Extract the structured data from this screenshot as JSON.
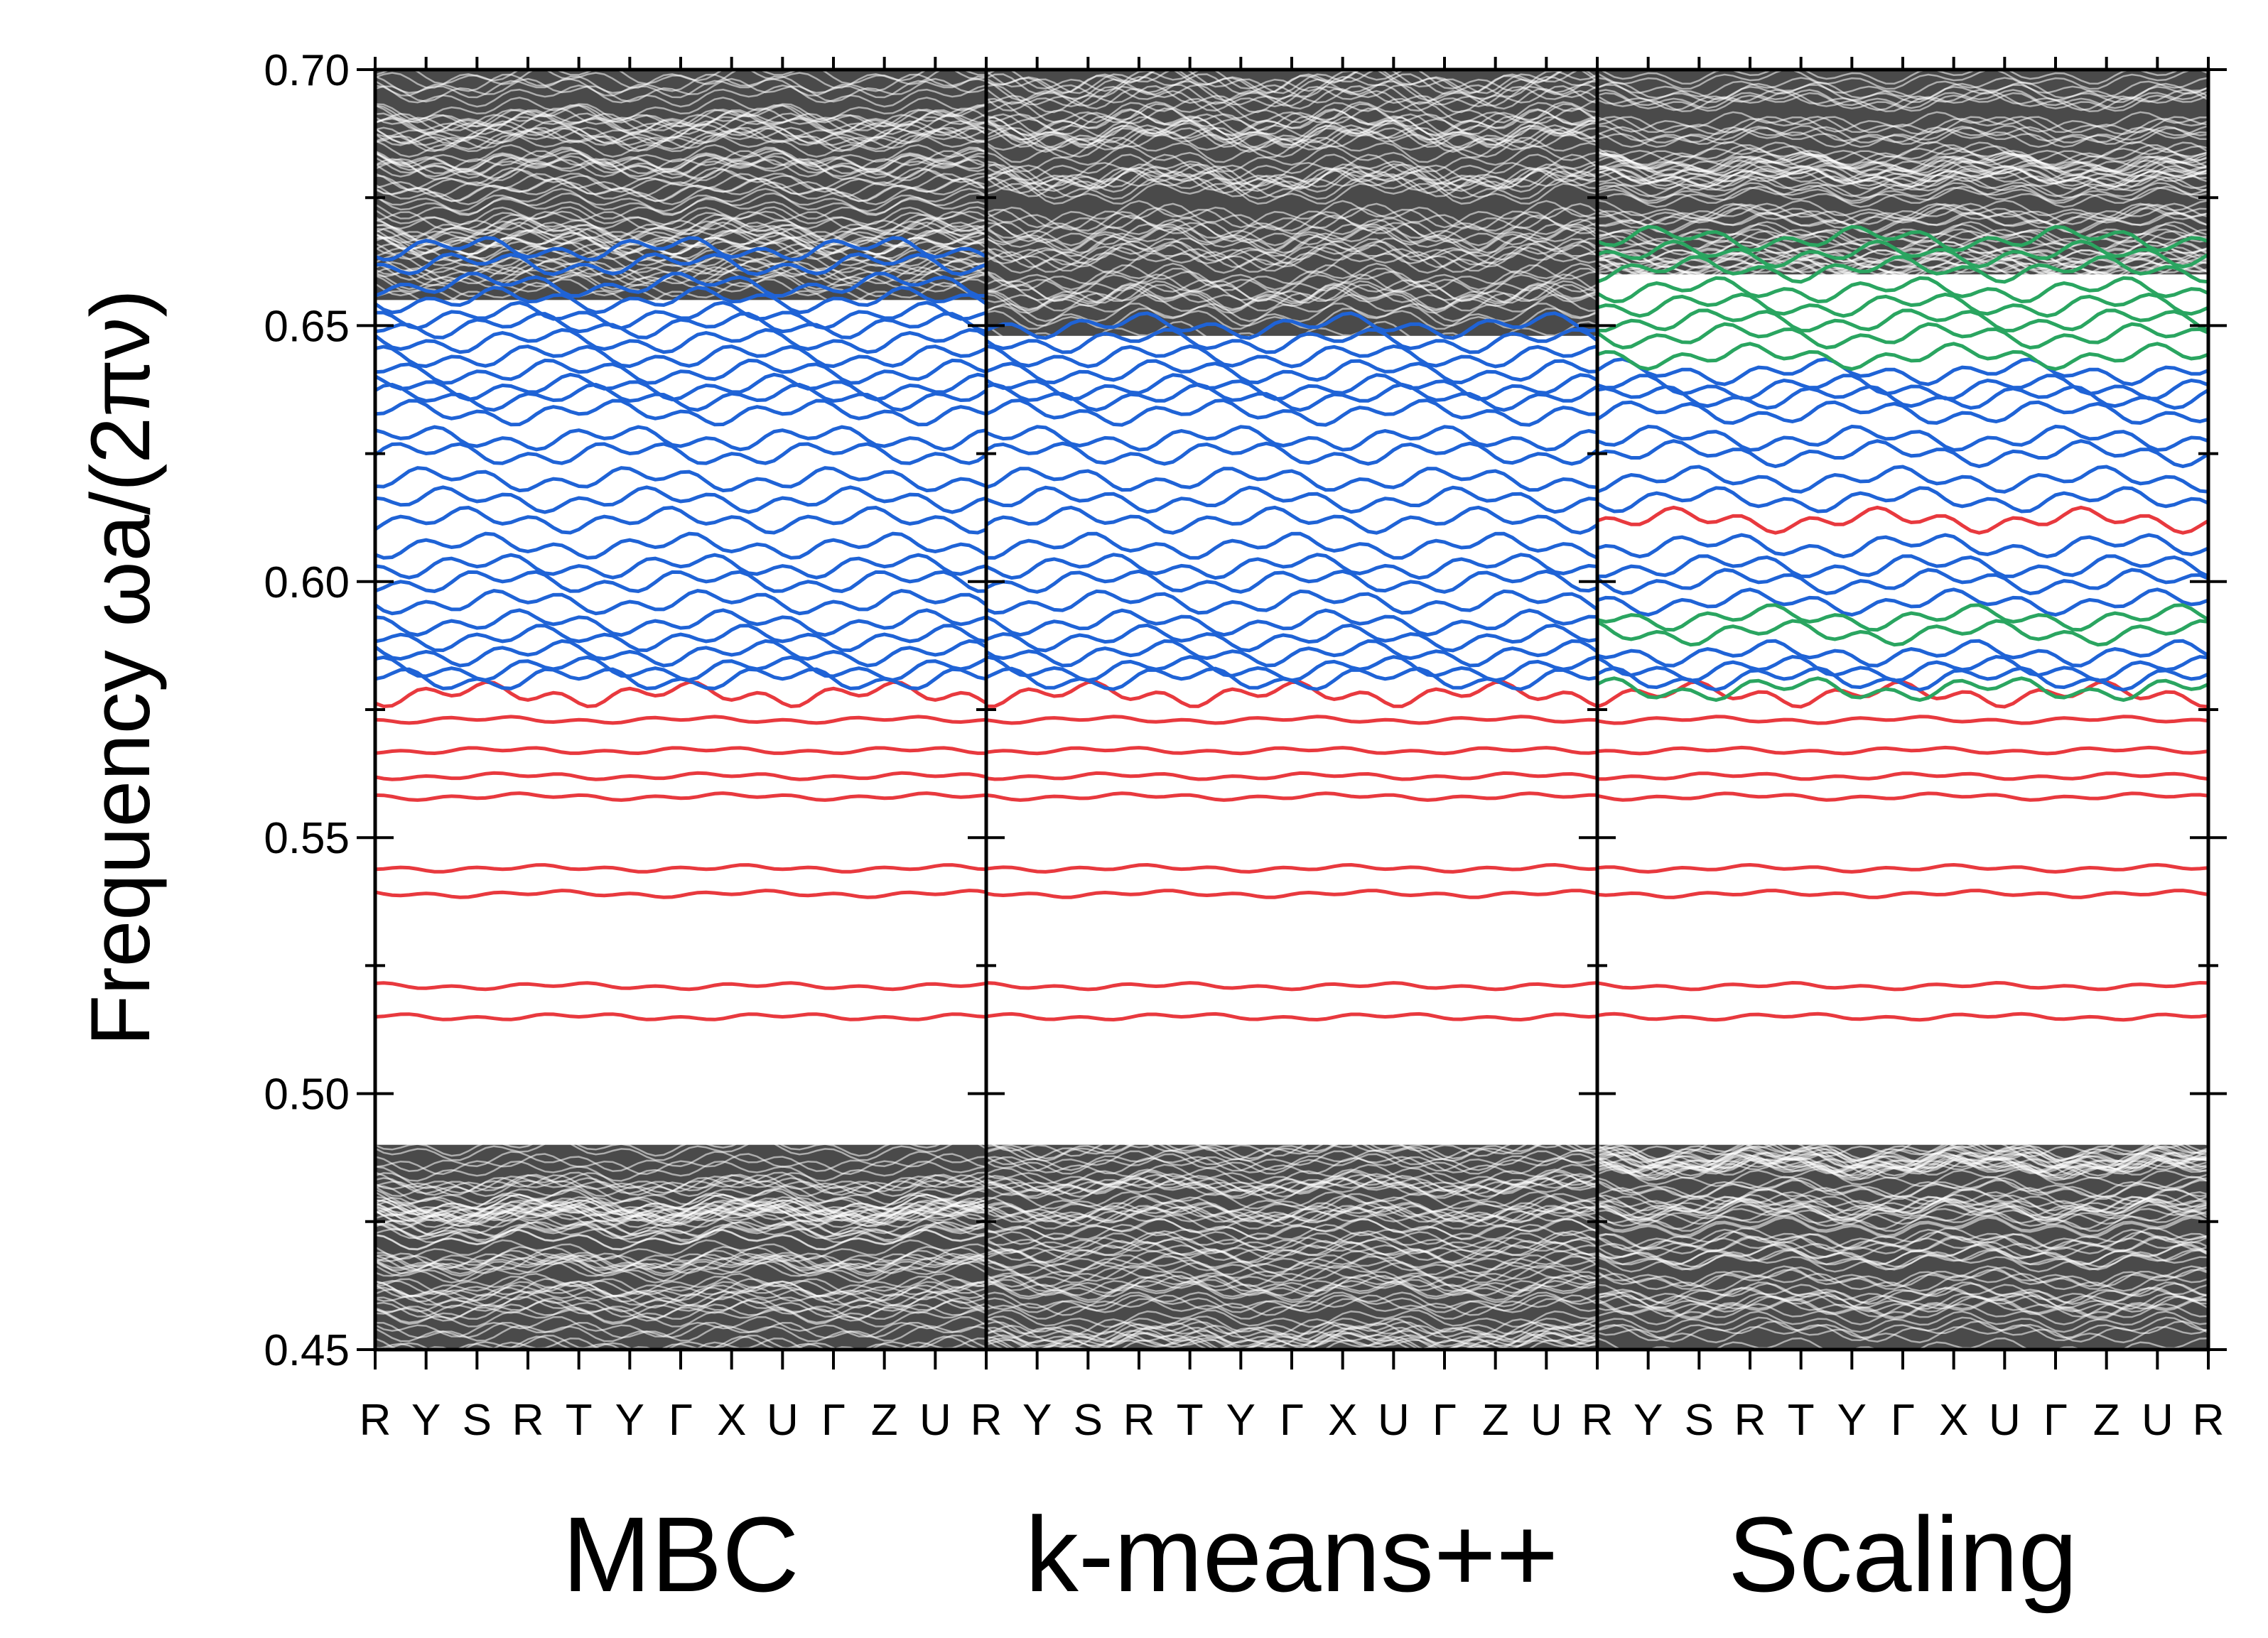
{
  "chart_data": {
    "type": "line",
    "ylabel": "Frequency ωa/(2πν)",
    "ylim": [
      0.45,
      0.7
    ],
    "yticks": [
      "0.45",
      "0.50",
      "0.55",
      "0.60",
      "0.65",
      "0.70"
    ],
    "kpath": [
      "R",
      "Y",
      "S",
      "R",
      "T",
      "Y",
      "Γ",
      "X",
      "U",
      "Γ",
      "Z",
      "U",
      "R"
    ],
    "colors": {
      "bulk": "#4a4a4a",
      "blue": "#1f63d6",
      "red": "#e8393e",
      "green": "#2aa560"
    },
    "panels": [
      {
        "label": "MBC",
        "bulk_bands": {
          "lower": [
            0.45,
            0.49
          ],
          "upper": [
            0.655,
            0.7
          ]
        },
        "red_bands": [
          0.515,
          0.521,
          0.539,
          0.544,
          0.558,
          0.562,
          0.567,
          0.573,
          0.578
        ],
        "blue_bands": [
          0.581,
          0.583,
          0.586,
          0.589,
          0.592,
          0.596,
          0.6,
          0.603,
          0.607,
          0.612,
          0.616,
          0.62,
          0.625,
          0.628,
          0.633,
          0.636,
          0.638,
          0.641,
          0.644,
          0.647,
          0.65,
          0.652,
          0.655,
          0.658,
          0.662,
          0.665
        ],
        "green_bands": []
      },
      {
        "label": "k-means++",
        "bulk_bands": {
          "lower": [
            0.45,
            0.49
          ],
          "upper": [
            0.648,
            0.7
          ]
        },
        "red_bands": [
          0.515,
          0.521,
          0.539,
          0.544,
          0.558,
          0.562,
          0.567,
          0.573,
          0.578
        ],
        "blue_bands": [
          0.581,
          0.583,
          0.586,
          0.589,
          0.592,
          0.596,
          0.6,
          0.603,
          0.607,
          0.612,
          0.616,
          0.62,
          0.625,
          0.628,
          0.633,
          0.636,
          0.638,
          0.641,
          0.644,
          0.647,
          0.65
        ],
        "green_bands": []
      },
      {
        "label": "Scaling",
        "bulk_bands": {
          "lower": [
            0.45,
            0.49
          ],
          "upper": [
            0.66,
            0.7
          ]
        },
        "red_bands": [
          0.515,
          0.521,
          0.539,
          0.544,
          0.558,
          0.562,
          0.567,
          0.573,
          0.578,
          0.612
        ],
        "blue_bands": [
          0.581,
          0.583,
          0.586,
          0.596,
          0.6,
          0.603,
          0.607,
          0.616,
          0.62,
          0.625,
          0.628,
          0.633,
          0.636,
          0.638,
          0.641
        ],
        "green_bands": [
          0.579,
          0.59,
          0.593,
          0.644,
          0.648,
          0.651,
          0.654,
          0.657,
          0.661,
          0.664,
          0.667
        ]
      }
    ]
  }
}
